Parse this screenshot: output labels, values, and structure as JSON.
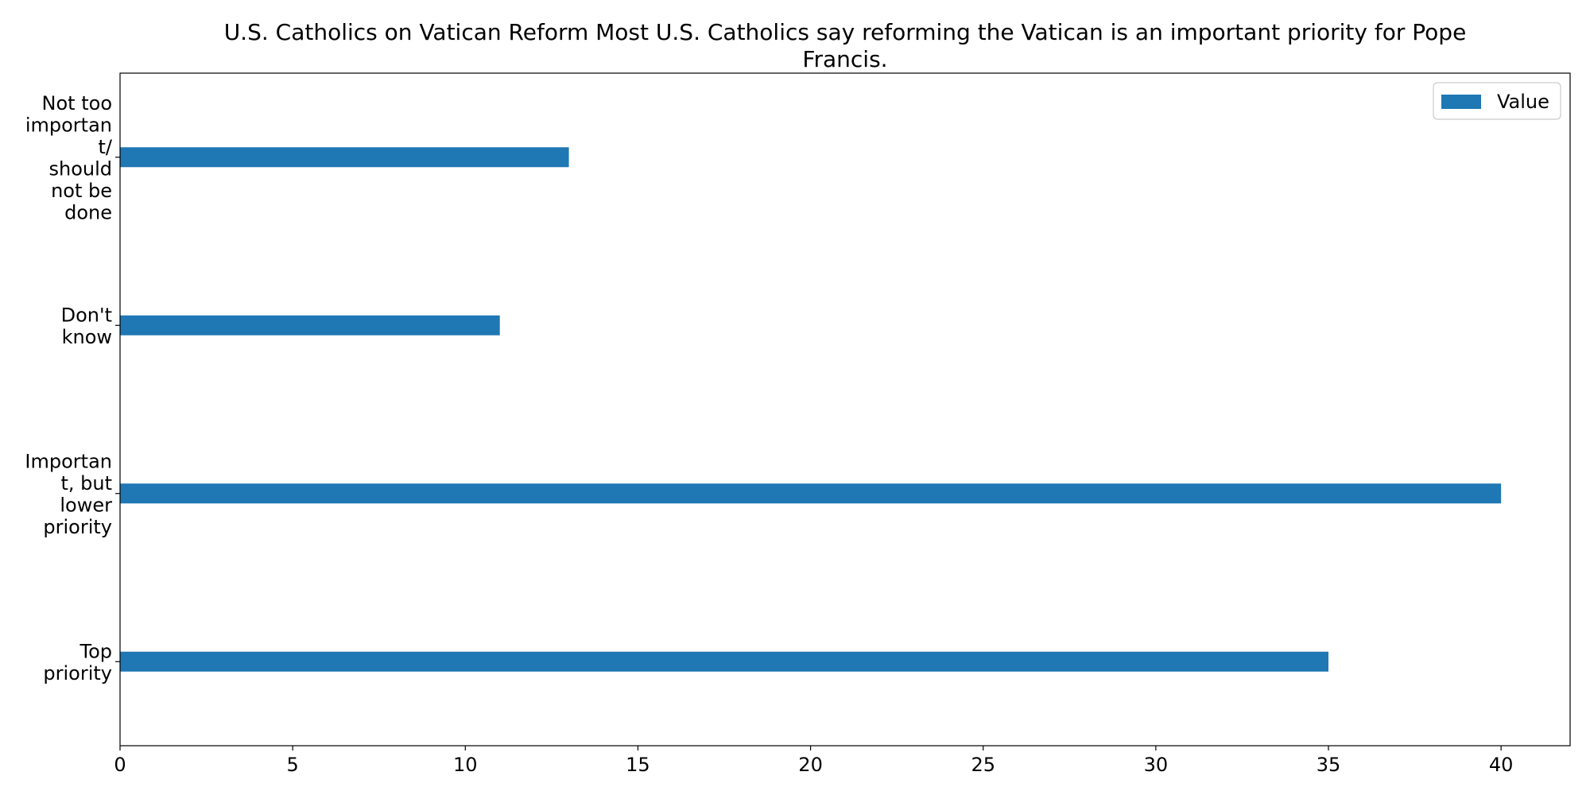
{
  "chart_data": {
    "type": "bar",
    "orientation": "horizontal",
    "title_lines": [
      "U.S. Catholics on Vatican Reform Most U.S. Catholics say reforming the Vatican is an important priority for Pope",
      "Francis."
    ],
    "categories": [
      {
        "lines": [
          "Not too",
          "importan",
          "t/",
          "should",
          "not be",
          "done"
        ]
      },
      {
        "lines": [
          "Don't",
          "know"
        ]
      },
      {
        "lines": [
          "Importan",
          "t, but",
          "lower",
          "priority"
        ]
      },
      {
        "lines": [
          "Top",
          "priority"
        ]
      }
    ],
    "series": [
      {
        "name": "Value",
        "color": "#1f77b4",
        "values": [
          13,
          11,
          40,
          35
        ]
      }
    ],
    "xlim": [
      0,
      42
    ],
    "xticks": [
      0,
      5,
      10,
      15,
      20,
      25,
      30,
      35,
      40
    ],
    "xlabel": "",
    "ylabel": "",
    "grid": false,
    "legend_position": "top-right"
  }
}
